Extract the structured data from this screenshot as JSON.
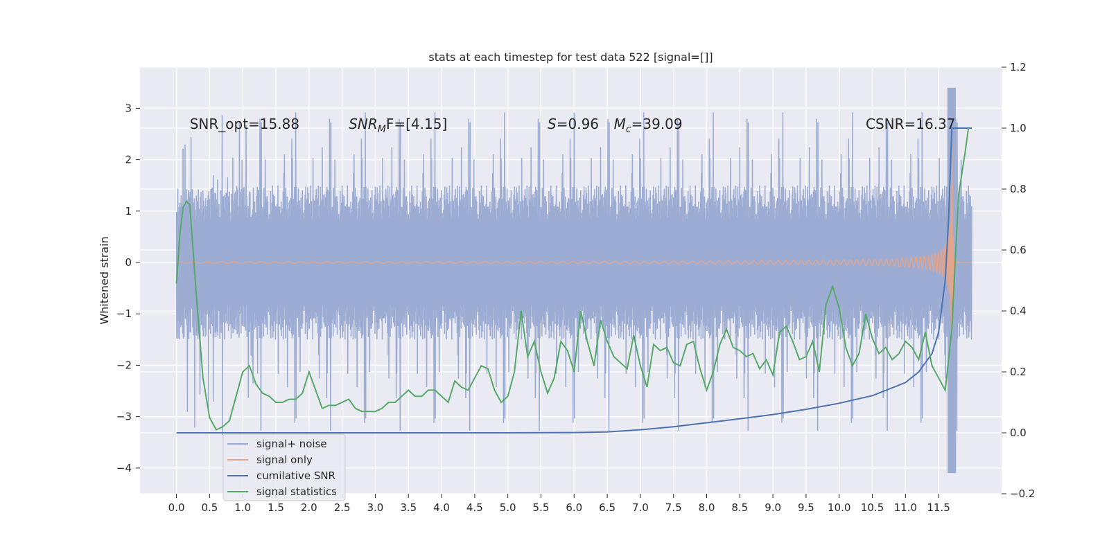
{
  "chart_data": {
    "type": "line",
    "title": "stats at each timestep for test data 522 [signal=[]]",
    "ylabel": "Whitened strain",
    "xlabel": "",
    "xlim": [
      -0.55,
      12.45
    ],
    "ylim": [
      -4.5,
      3.8
    ],
    "y2lim": [
      -0.2,
      1.2
    ],
    "grid": true,
    "x_ticks": [
      "0.0",
      "0.5",
      "1.0",
      "1.5",
      "2.0",
      "2.5",
      "3.0",
      "3.5",
      "4.0",
      "4.5",
      "5.0",
      "5.5",
      "6.0",
      "6.5",
      "7.0",
      "7.5",
      "8.0",
      "8.5",
      "9.0",
      "9.5",
      "10.0",
      "10.5",
      "11.0",
      "11.5"
    ],
    "x_tick_values": [
      0,
      0.5,
      1,
      1.5,
      2,
      2.5,
      3,
      3.5,
      4,
      4.5,
      5,
      5.5,
      6,
      6.5,
      7,
      7.5,
      8,
      8.5,
      9,
      9.5,
      10,
      10.5,
      11,
      11.5
    ],
    "y_ticks": [
      "3",
      "2",
      "1",
      "0",
      "−1",
      "−2",
      "−3",
      "−4"
    ],
    "y_tick_values": [
      3,
      2,
      1,
      0,
      -1,
      -2,
      -3,
      -4
    ],
    "y2_ticks": [
      "1.2",
      "1.0",
      "0.8",
      "0.6",
      "0.4",
      "0.2",
      "0.0",
      "−0.2"
    ],
    "y2_tick_values": [
      1.2,
      1.0,
      0.8,
      0.6,
      0.4,
      0.2,
      0.0,
      -0.2
    ],
    "annotations": [
      {
        "text": "SNR_opt=15.88",
        "x": 0.2,
        "y": 2.6
      },
      {
        "text": "SNR",
        "sub": "M",
        "rest": "F=[4.15]",
        "x": 2.6,
        "y": 2.6
      },
      {
        "text": "S",
        "rest": "=0.96",
        "x": 5.6,
        "y": 2.6
      },
      {
        "text": "M",
        "sub": "c",
        "rest": "=39.09",
        "x": 6.6,
        "y": 2.6
      },
      {
        "text": "CSNR=16.37",
        "x": 10.4,
        "y": 2.6
      }
    ],
    "legend": {
      "placement": "lower-left",
      "entries": [
        {
          "label": "signal+ noise",
          "color": "#98a9d0"
        },
        {
          "label": "signal only",
          "color": "#e3a48a"
        },
        {
          "label": "cumilative SNR",
          "color": "#4c72b0"
        },
        {
          "label": "signal statistics",
          "color": "#55a868"
        }
      ]
    },
    "series": [
      {
        "name": "signal+ noise",
        "axis": "left",
        "color": "#98a9d0",
        "x_range": [
          0,
          12.0
        ],
        "upper_typical": 1.5,
        "lower_typical": -1.5,
        "peak_max": 3.4,
        "peak_min": -4.1
      },
      {
        "name": "signal only",
        "axis": "left",
        "color": "#e3a48a",
        "x_range": [
          0,
          12.0
        ],
        "merger_x": 11.7,
        "peak_amplitude": 3.4
      },
      {
        "name": "cumilative SNR",
        "axis": "right",
        "color": "#4c72b0",
        "x": [
          0,
          1,
          2,
          3,
          4,
          5,
          6,
          6.5,
          7,
          7.5,
          8,
          8.5,
          9,
          9.5,
          10,
          10.5,
          11,
          11.2,
          11.4,
          11.5,
          11.6,
          11.65,
          11.7,
          12.0
        ],
        "y": [
          0,
          0,
          0,
          0,
          0,
          0,
          0.001,
          0.003,
          0.01,
          0.02,
          0.033,
          0.046,
          0.06,
          0.077,
          0.097,
          0.122,
          0.165,
          0.2,
          0.26,
          0.33,
          0.5,
          0.7,
          1.0,
          1.0
        ]
      },
      {
        "name": "signal statistics",
        "axis": "right",
        "color": "#55a868",
        "x": [
          0,
          0.05,
          0.1,
          0.15,
          0.2,
          0.3,
          0.4,
          0.5,
          0.6,
          0.7,
          0.8,
          0.9,
          1.0,
          1.1,
          1.2,
          1.3,
          1.4,
          1.5,
          1.6,
          1.7,
          1.8,
          1.9,
          2.0,
          2.1,
          2.2,
          2.3,
          2.4,
          2.5,
          2.6,
          2.7,
          2.8,
          2.9,
          3.0,
          3.1,
          3.2,
          3.3,
          3.4,
          3.5,
          3.6,
          3.7,
          3.8,
          3.9,
          4.0,
          4.1,
          4.2,
          4.3,
          4.4,
          4.5,
          4.6,
          4.7,
          4.8,
          4.9,
          5.0,
          5.1,
          5.2,
          5.3,
          5.4,
          5.5,
          5.6,
          5.7,
          5.8,
          5.9,
          6.0,
          6.1,
          6.2,
          6.3,
          6.4,
          6.5,
          6.6,
          6.7,
          6.8,
          6.9,
          7.0,
          7.1,
          7.2,
          7.3,
          7.4,
          7.5,
          7.6,
          7.7,
          7.8,
          7.9,
          8.0,
          8.1,
          8.2,
          8.3,
          8.4,
          8.5,
          8.6,
          8.7,
          8.8,
          8.9,
          9.0,
          9.1,
          9.2,
          9.3,
          9.4,
          9.5,
          9.6,
          9.7,
          9.8,
          9.9,
          10.0,
          10.1,
          10.2,
          10.3,
          10.4,
          10.5,
          10.6,
          10.7,
          10.8,
          10.9,
          11.0,
          11.1,
          11.2,
          11.3,
          11.4,
          11.5,
          11.6,
          11.7,
          11.8,
          11.9,
          11.95
        ],
        "y": [
          0.49,
          0.65,
          0.74,
          0.76,
          0.75,
          0.45,
          0.18,
          0.05,
          0.01,
          0.02,
          0.04,
          0.12,
          0.2,
          0.22,
          0.16,
          0.13,
          0.12,
          0.1,
          0.1,
          0.11,
          0.11,
          0.13,
          0.2,
          0.14,
          0.08,
          0.09,
          0.09,
          0.1,
          0.11,
          0.08,
          0.07,
          0.07,
          0.07,
          0.08,
          0.1,
          0.1,
          0.12,
          0.14,
          0.12,
          0.12,
          0.14,
          0.14,
          0.12,
          0.1,
          0.17,
          0.15,
          0.14,
          0.18,
          0.22,
          0.21,
          0.14,
          0.1,
          0.12,
          0.2,
          0.4,
          0.25,
          0.3,
          0.2,
          0.13,
          0.18,
          0.3,
          0.27,
          0.2,
          0.4,
          0.3,
          0.22,
          0.37,
          0.3,
          0.25,
          0.23,
          0.21,
          0.32,
          0.22,
          0.15,
          0.29,
          0.27,
          0.28,
          0.23,
          0.22,
          0.29,
          0.3,
          0.21,
          0.14,
          0.2,
          0.29,
          0.34,
          0.28,
          0.27,
          0.25,
          0.26,
          0.21,
          0.24,
          0.19,
          0.33,
          0.35,
          0.3,
          0.24,
          0.25,
          0.3,
          0.2,
          0.42,
          0.48,
          0.41,
          0.28,
          0.22,
          0.26,
          0.39,
          0.31,
          0.26,
          0.28,
          0.24,
          0.26,
          0.3,
          0.28,
          0.24,
          0.33,
          0.22,
          0.18,
          0.14,
          0.34,
          0.78,
          0.92,
          1.0
        ]
      }
    ]
  }
}
